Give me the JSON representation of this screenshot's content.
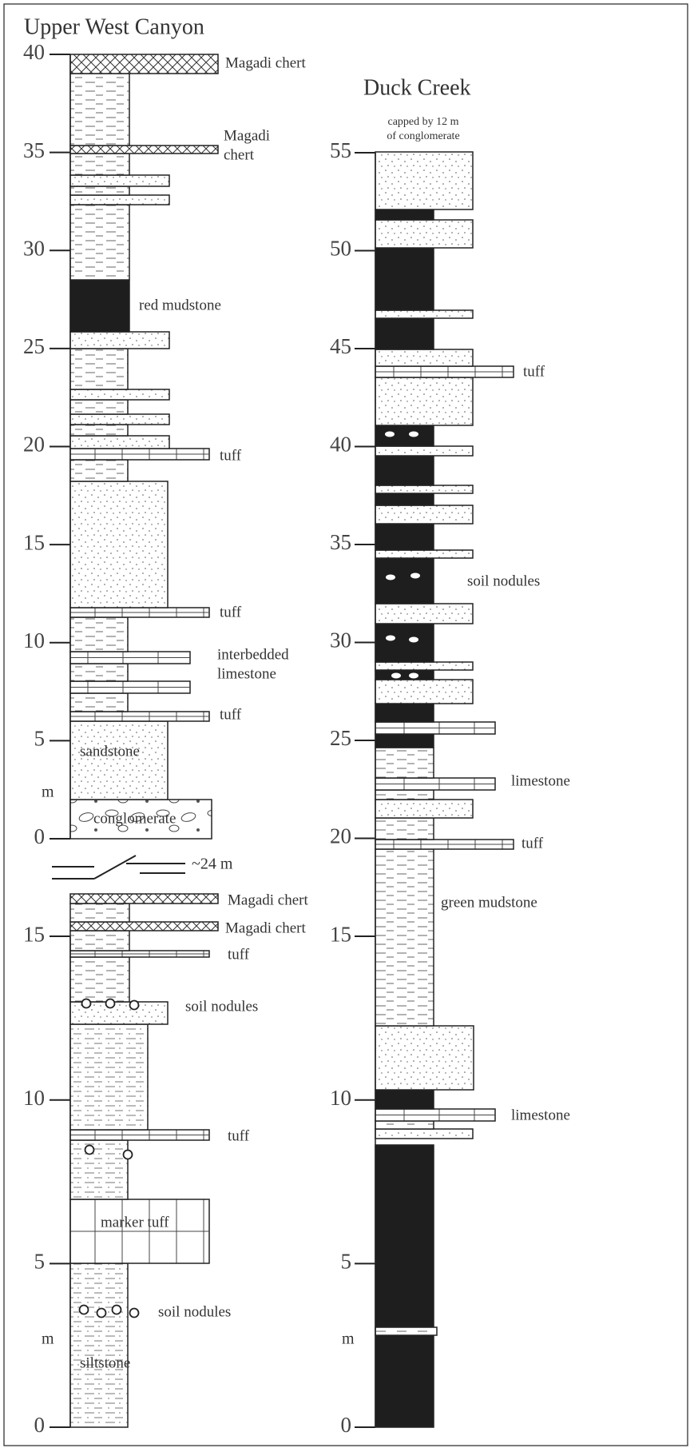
{
  "upper_west_canyon": {
    "title": "Upper West Canyon",
    "upper_section": {
      "ticks": [
        0,
        5,
        10,
        15,
        20,
        25,
        30,
        35,
        40
      ],
      "unit": "m",
      "labels": [
        [
          "Magadi chert"
        ],
        [
          "Magadi",
          "chert"
        ],
        [
          "red mudstone"
        ],
        [
          "tuff"
        ],
        [
          "tuff"
        ],
        [
          "interbedded",
          "limestone"
        ],
        [
          "tuff"
        ],
        [
          "sandstone"
        ],
        [
          "conglomerate"
        ]
      ]
    },
    "gap": "~24 m",
    "lower_section": {
      "ticks": [
        0,
        5,
        10,
        15
      ],
      "unit": "m",
      "labels": [
        [
          "Magadi chert"
        ],
        [
          "Magadi chert"
        ],
        [
          "tuff"
        ],
        [
          "soil nodules"
        ],
        [
          "tuff"
        ],
        [
          "marker tuff"
        ],
        [
          "soil nodules"
        ],
        [
          "siltstone"
        ]
      ]
    }
  },
  "duck_creek": {
    "title": "Duck Creek",
    "note": [
      "capped by 12 m",
      "of conglomerate"
    ],
    "ticks": [
      0,
      5,
      10,
      15,
      20,
      25,
      30,
      35,
      40,
      45,
      50,
      55
    ],
    "unit": "m",
    "labels": [
      [
        "tuff"
      ],
      [
        "soil nodules"
      ],
      [
        "limestone"
      ],
      [
        "tuff"
      ],
      [
        "green mudstone"
      ],
      [
        "limestone"
      ]
    ]
  }
}
